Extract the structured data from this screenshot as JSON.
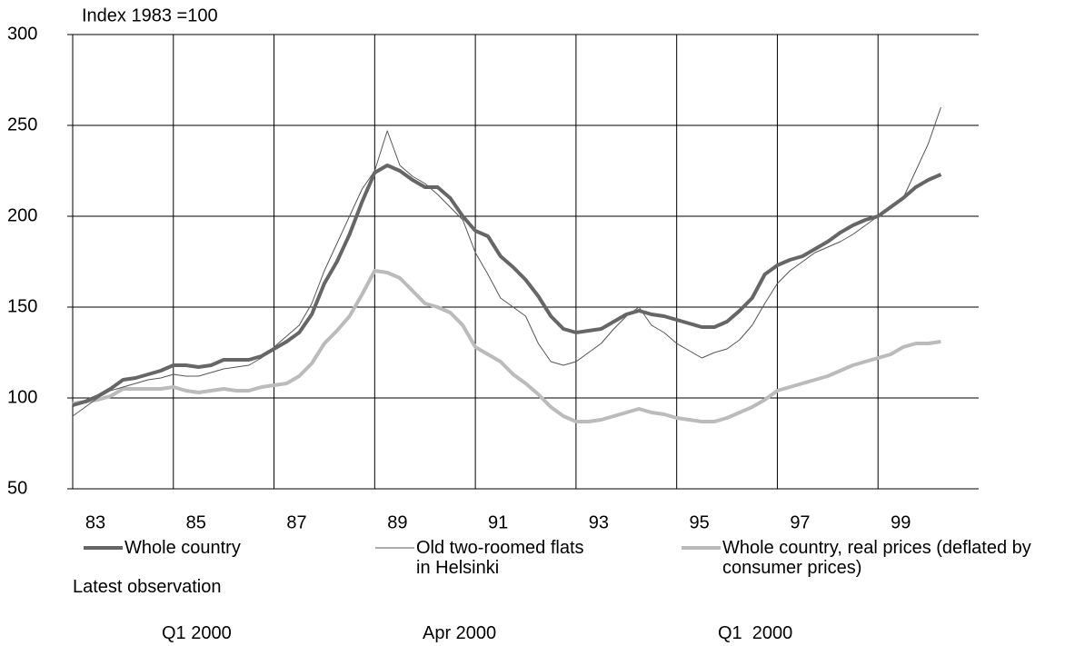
{
  "chart_data": {
    "type": "line",
    "y_label": "Index 1983 =100",
    "xlim": [
      1983,
      2001
    ],
    "xticks": [
      {
        "value": 1983,
        "label": "83"
      },
      {
        "value": 1985,
        "label": "85"
      },
      {
        "value": 1987,
        "label": "87"
      },
      {
        "value": 1989,
        "label": "89"
      },
      {
        "value": 1991,
        "label": "91"
      },
      {
        "value": 1993,
        "label": "93"
      },
      {
        "value": 1995,
        "label": "95"
      },
      {
        "value": 1997,
        "label": "97"
      },
      {
        "value": 1999,
        "label": "99"
      }
    ],
    "ylim": [
      50,
      300
    ],
    "yticks": [
      50,
      100,
      150,
      200,
      250,
      300
    ],
    "grid": true,
    "x": [
      1983,
      1983.25,
      1983.5,
      1983.75,
      1984,
      1984.25,
      1984.5,
      1984.75,
      1985,
      1985.25,
      1985.5,
      1985.75,
      1986,
      1986.25,
      1986.5,
      1986.75,
      1987,
      1987.25,
      1987.5,
      1987.75,
      1988,
      1988.25,
      1988.5,
      1988.75,
      1989,
      1989.25,
      1989.5,
      1989.75,
      1990,
      1990.25,
      1990.5,
      1990.75,
      1991,
      1991.25,
      1991.5,
      1991.75,
      1992,
      1992.25,
      1992.5,
      1992.75,
      1993,
      1993.25,
      1993.5,
      1993.75,
      1994,
      1994.25,
      1994.5,
      1994.75,
      1995,
      1995.25,
      1995.5,
      1995.75,
      1996,
      1996.25,
      1996.5,
      1996.75,
      1997,
      1997.25,
      1997.5,
      1997.75,
      1998,
      1998.25,
      1998.5,
      1998.75,
      1999,
      1999.25,
      1999.5,
      1999.75,
      2000,
      2000.25
    ],
    "series": [
      {
        "name": "Whole country",
        "color": "#666666",
        "width": 4,
        "values": [
          96,
          98,
          101,
          105,
          110,
          111,
          113,
          115,
          118,
          118,
          117,
          118,
          121,
          121,
          121,
          123,
          127,
          131,
          136,
          146,
          163,
          175,
          190,
          208,
          224,
          228,
          225,
          220,
          216,
          216,
          210,
          200,
          192,
          189,
          178,
          172,
          165,
          156,
          145,
          138,
          136,
          137,
          138,
          142,
          146,
          148,
          146,
          145,
          143,
          141,
          139,
          139,
          142,
          148,
          155,
          168,
          173,
          176,
          178,
          182,
          186,
          191,
          195,
          198,
          200,
          205,
          210,
          216,
          220,
          223
        ]
      },
      {
        "name": "Old two-roomed flats in Helsinki",
        "color": "#555555",
        "width": 1,
        "values": [
          90,
          95,
          100,
          104,
          106,
          108,
          110,
          111,
          113,
          112,
          112,
          114,
          116,
          117,
          118,
          122,
          128,
          134,
          140,
          152,
          170,
          185,
          200,
          215,
          225,
          247,
          228,
          222,
          218,
          212,
          205,
          198,
          180,
          168,
          155,
          150,
          145,
          130,
          120,
          118,
          120,
          125,
          130,
          138,
          145,
          150,
          140,
          136,
          130,
          126,
          122,
          125,
          127,
          132,
          140,
          152,
          163,
          170,
          175,
          180,
          183,
          186,
          190,
          195,
          200,
          205,
          210,
          225,
          240,
          260
        ]
      },
      {
        "name": "Whole country, real prices (deflated by consumer prices)",
        "color": "#bbbbbb",
        "width": 4,
        "values": [
          97,
          98,
          99,
          101,
          105,
          105,
          105,
          105,
          106,
          104,
          103,
          104,
          105,
          104,
          104,
          106,
          107,
          108,
          112,
          119,
          130,
          137,
          145,
          157,
          170,
          169,
          166,
          159,
          152,
          150,
          147,
          140,
          128,
          124,
          120,
          113,
          108,
          102,
          95,
          90,
          87,
          87,
          88,
          90,
          92,
          94,
          92,
          91,
          89,
          88,
          87,
          87,
          89,
          92,
          95,
          99,
          104,
          106,
          108,
          110,
          112,
          115,
          118,
          120,
          122,
          124,
          128,
          130,
          130,
          131
        ]
      }
    ],
    "latest_observation": {
      "label": "Latest observation",
      "values": [
        "Q1 2000",
        "Apr 2000",
        "Q1  2000"
      ]
    }
  }
}
